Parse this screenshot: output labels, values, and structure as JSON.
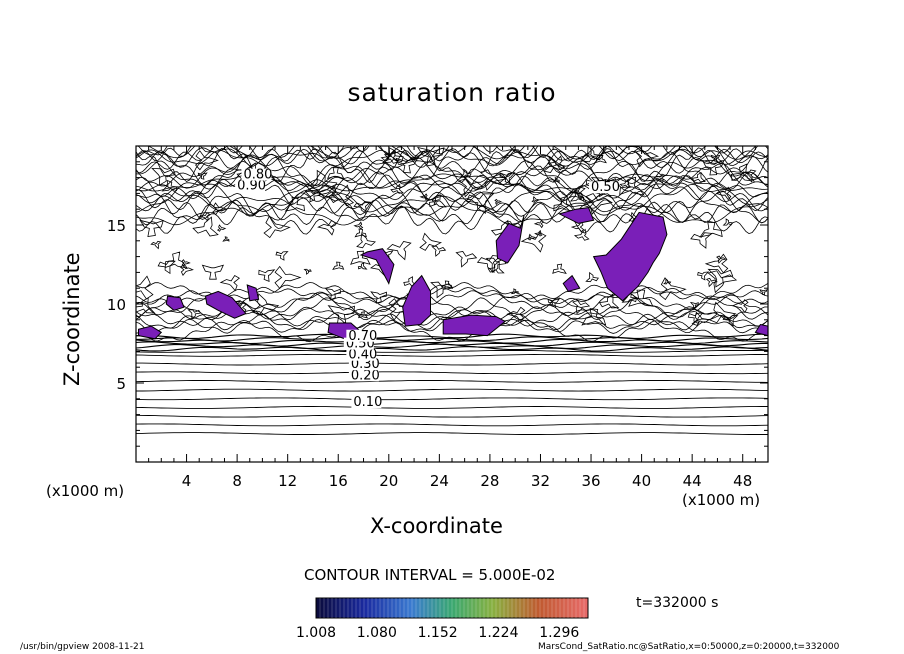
{
  "chart_data": {
    "type": "contour",
    "title": "saturation ratio",
    "xlabel": "X-coordinate",
    "ylabel": "Z-coordinate",
    "x_unit": "(x1000 m)",
    "xlim": [
      0,
      50
    ],
    "ylim": [
      0,
      20
    ],
    "x_ticks": [
      4,
      8,
      12,
      16,
      20,
      24,
      28,
      32,
      36,
      40,
      44,
      48
    ],
    "y_ticks": [
      5,
      10,
      15
    ],
    "contour_interval": "CONTOUR INTERVAL = 5.000E-02",
    "contour_labels": [
      {
        "text": "0.10",
        "x": 17.2,
        "y": 3.6
      },
      {
        "text": "0.20",
        "x": 17.0,
        "y": 5.3
      },
      {
        "text": "0.30",
        "x": 17.0,
        "y": 6.0
      },
      {
        "text": "0.40",
        "x": 16.8,
        "y": 6.6
      },
      {
        "text": "0.50",
        "x": 16.6,
        "y": 7.3
      },
      {
        "text": "0.70",
        "x": 16.8,
        "y": 7.8
      },
      {
        "text": "0.50",
        "x": 36.0,
        "y": 17.2
      },
      {
        "text": "0.90",
        "x": 8.0,
        "y": 17.3
      },
      {
        "text": "0.80",
        "x": 8.5,
        "y": 18.0
      }
    ],
    "shaded_regions_supersaturated": [
      [
        [
          0.2,
          8.0
        ],
        [
          1.5,
          7.8
        ],
        [
          2.0,
          8.2
        ],
        [
          1.2,
          8.6
        ],
        [
          0.2,
          8.4
        ]
      ],
      [
        [
          2.5,
          10.5
        ],
        [
          3.5,
          10.4
        ],
        [
          3.8,
          9.8
        ],
        [
          3.0,
          9.6
        ],
        [
          2.4,
          10.0
        ]
      ],
      [
        [
          5.5,
          10.5
        ],
        [
          6.5,
          10.8
        ],
        [
          7.6,
          10.4
        ],
        [
          8.7,
          9.4
        ],
        [
          7.8,
          9.1
        ],
        [
          6.5,
          9.6
        ],
        [
          5.6,
          10.0
        ]
      ],
      [
        [
          8.8,
          11.2
        ],
        [
          9.5,
          11.0
        ],
        [
          9.7,
          10.3
        ],
        [
          9.0,
          10.2
        ]
      ],
      [
        [
          15.3,
          8.8
        ],
        [
          17.0,
          8.8
        ],
        [
          18.0,
          8.1
        ],
        [
          16.5,
          7.8
        ],
        [
          15.2,
          8.2
        ]
      ],
      [
        [
          17.8,
          13.1
        ],
        [
          19.0,
          12.8
        ],
        [
          20.0,
          11.3
        ],
        [
          20.4,
          12.5
        ],
        [
          19.5,
          13.5
        ],
        [
          18.3,
          13.3
        ]
      ],
      [
        [
          21.3,
          8.6
        ],
        [
          22.5,
          8.7
        ],
        [
          23.3,
          9.3
        ],
        [
          23.3,
          10.8
        ],
        [
          22.6,
          11.8
        ],
        [
          21.8,
          11.1
        ],
        [
          21.1,
          9.8
        ]
      ],
      [
        [
          24.3,
          8.1
        ],
        [
          26.1,
          8.1
        ],
        [
          27.8,
          8.0
        ],
        [
          29.2,
          8.9
        ],
        [
          28.5,
          9.2
        ],
        [
          26.5,
          9.3
        ],
        [
          24.3,
          9.0
        ]
      ],
      [
        [
          28.5,
          14.0
        ],
        [
          29.5,
          15.1
        ],
        [
          30.4,
          14.8
        ],
        [
          30.7,
          15.6
        ],
        [
          30.3,
          13.7
        ],
        [
          29.4,
          12.6
        ],
        [
          28.6,
          12.9
        ]
      ],
      [
        [
          33.5,
          15.7
        ],
        [
          34.8,
          16.0
        ],
        [
          35.8,
          16.1
        ],
        [
          36.2,
          15.3
        ],
        [
          35.0,
          15.1
        ]
      ],
      [
        [
          33.8,
          11.3
        ],
        [
          34.5,
          11.8
        ],
        [
          35.1,
          11.0
        ],
        [
          34.2,
          10.8
        ]
      ],
      [
        [
          36.2,
          13.0
        ],
        [
          37.2,
          13.1
        ],
        [
          38.4,
          14.1
        ],
        [
          39.8,
          15.8
        ],
        [
          41.7,
          15.5
        ],
        [
          42.0,
          14.4
        ],
        [
          41.4,
          13.2
        ],
        [
          40.9,
          12.6
        ],
        [
          40.5,
          12.0
        ],
        [
          39.7,
          11.1
        ],
        [
          38.5,
          10.2
        ],
        [
          37.3,
          11.0
        ],
        [
          36.8,
          12.0
        ]
      ],
      [
        [
          49.0,
          8.2
        ],
        [
          50.0,
          8.0
        ],
        [
          50.0,
          8.6
        ],
        [
          49.4,
          8.7
        ]
      ]
    ],
    "colorbar": {
      "labels": [
        "1.008",
        "1.080",
        "1.152",
        "1.224",
        "1.296"
      ],
      "range": [
        1.008,
        1.33
      ]
    },
    "time_label": "t=332000 s",
    "footer_left": "/usr/bin/gpview   2008-11-21",
    "footer_right": "MarsCond_SatRatio.nc@SatRatio,x=0:50000,z=0:20000,t=332000"
  }
}
